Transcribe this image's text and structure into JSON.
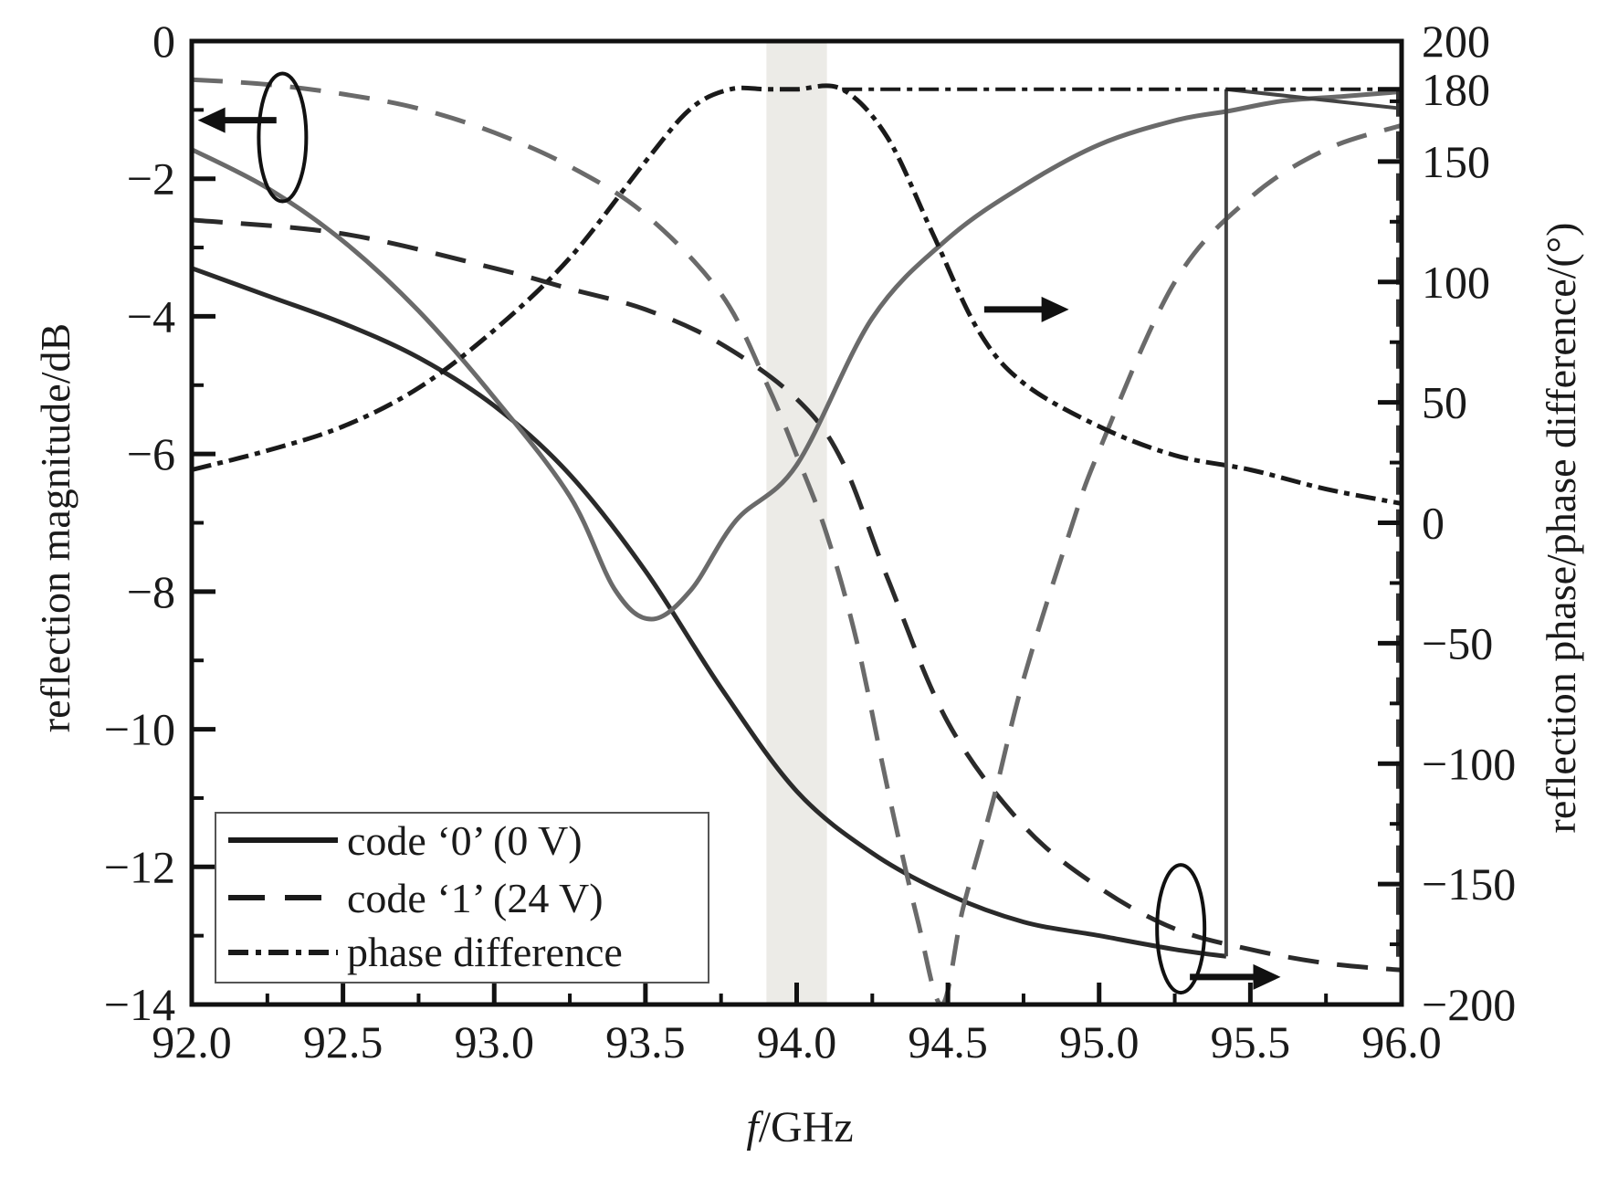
{
  "chart_data": {
    "type": "line",
    "xlabel": "f/GHz",
    "xlabel_italic_part": "f",
    "xlabel_rest": "/GHz",
    "ylabel_left": "reflection magnitude/dB",
    "ylabel_right": "reflection phase/phase difference/(°)",
    "xlim": [
      92.0,
      96.0
    ],
    "ylim_left": [
      -14,
      0
    ],
    "ylim_right": [
      -200,
      200
    ],
    "x_ticks": [
      "92.0",
      "92.5",
      "93.0",
      "93.5",
      "94.0",
      "94.5",
      "95.0",
      "95.5",
      "96.0"
    ],
    "y_left_ticks": [
      "0",
      "−2",
      "−4",
      "−6",
      "−8",
      "−10",
      "−12",
      "−14"
    ],
    "y_right_ticks": [
      "200",
      "180",
      "150",
      "100",
      "50",
      "0",
      "−50",
      "−100",
      "−150",
      "−200"
    ],
    "y_right_tick_values": [
      200,
      180,
      150,
      100,
      50,
      0,
      -50,
      -100,
      -150,
      -200
    ],
    "highlight_band": [
      93.9,
      94.1
    ],
    "legend": {
      "position": "bottom-left",
      "entries": [
        {
          "label": "code ‘0’ (0 V)",
          "style": "solid"
        },
        {
          "label": "code ‘1’ (24 V)",
          "style": "dashed"
        },
        {
          "label": "phase difference",
          "style": "dash-dot"
        }
      ]
    },
    "series": [
      {
        "name": "code ‘0’ (0 V)",
        "axis": "left",
        "style": "solid",
        "color": "#2a2a2a",
        "x": [
          92.0,
          92.25,
          92.5,
          92.75,
          93.0,
          93.25,
          93.5,
          93.75,
          94.0,
          94.25,
          94.5,
          94.75,
          95.0,
          95.25,
          95.42
        ],
        "y": [
          -3.3,
          -3.7,
          -4.1,
          -4.6,
          -5.3,
          -6.3,
          -7.7,
          -9.4,
          -10.9,
          -11.8,
          -12.4,
          -12.8,
          -13.0,
          -13.2,
          -13.3
        ]
      },
      {
        "name": "code ‘1’ (24 V)",
        "axis": "left",
        "style": "dashed",
        "color": "#2a2a2a",
        "x": [
          92.0,
          92.5,
          93.0,
          93.25,
          93.5,
          93.75,
          94.0,
          94.15,
          94.3,
          94.5,
          94.75,
          95.0,
          95.25,
          95.5,
          95.75,
          96.0
        ],
        "y": [
          -2.6,
          -2.8,
          -3.3,
          -3.6,
          -3.9,
          -4.4,
          -5.2,
          -6.1,
          -7.8,
          -9.9,
          -11.4,
          -12.3,
          -12.9,
          -13.2,
          -13.4,
          -13.5
        ]
      },
      {
        "name": "code ‘0’ phase",
        "axis": "right",
        "style": "solid",
        "color": "#6a6a6a",
        "x": [
          92.0,
          92.25,
          92.5,
          92.75,
          93.0,
          93.25,
          93.4,
          93.52,
          93.65,
          93.8,
          94.0,
          94.25,
          94.5,
          94.75,
          95.0,
          95.25,
          95.43,
          95.6,
          95.8,
          96.0
        ],
        "y": [
          155,
          139,
          117,
          88,
          52,
          11,
          -28,
          -40,
          -28,
          1,
          24,
          85,
          118,
          140,
          157,
          167,
          171,
          175,
          177,
          179
        ]
      },
      {
        "name": "code ‘1’ phase",
        "axis": "right",
        "style": "dashed",
        "color": "#6a6a6a",
        "x": [
          92.0,
          92.25,
          92.5,
          92.75,
          93.0,
          93.25,
          93.5,
          93.75,
          93.9,
          94.0,
          94.1,
          94.2,
          94.3,
          94.4,
          94.48,
          94.55,
          94.65,
          94.75,
          94.9,
          95.0,
          95.25,
          95.5,
          95.75,
          96.0
        ],
        "y": [
          184,
          182,
          178,
          172,
          162,
          148,
          128,
          95,
          58,
          28,
          -5,
          -50,
          -110,
          -165,
          -200,
          -160,
          -115,
          -65,
          -5,
          30,
          100,
          135,
          155,
          165
        ]
      },
      {
        "name": "phase difference",
        "axis": "right",
        "style": "dash-dot",
        "color": "#1a1a1a",
        "x": [
          92.0,
          92.25,
          92.5,
          92.75,
          93.0,
          93.25,
          93.5,
          93.65,
          93.78,
          93.9,
          94.0,
          94.15,
          94.3,
          94.45,
          94.6,
          94.75,
          95.0,
          95.25,
          95.5,
          95.75,
          96.0
        ],
        "y": [
          22,
          30,
          40,
          56,
          80,
          110,
          150,
          172,
          180,
          180,
          180,
          180,
          160,
          120,
          80,
          58,
          40,
          28,
          22,
          14,
          8
        ]
      }
    ]
  }
}
